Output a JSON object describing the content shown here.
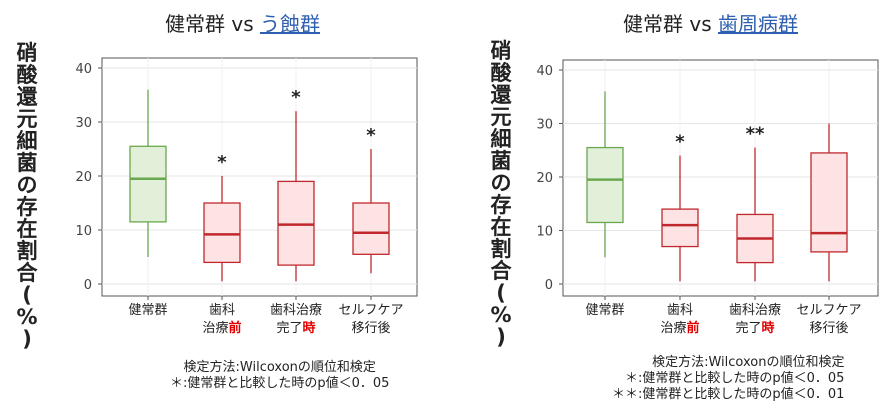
{
  "chart_data": [
    {
      "type": "box",
      "title_prefix": "健常群 vs ",
      "title_highlight": "う蝕群",
      "ylabel": "硝酸還元細菌の存在割合(%)",
      "ylim": [
        0,
        40
      ],
      "yticks": [
        0,
        10,
        20,
        30,
        40
      ],
      "colors": {
        "control": "#6aa84f",
        "control_fill": "#e2efd9",
        "case": "#c0282e",
        "case_fill": "#fde3e3"
      },
      "series": [
        {
          "name": "健常群",
          "label_lines": [
            [
              "健常群",
              ""
            ]
          ],
          "min": 5,
          "q1": 11.5,
          "median": 19.5,
          "q3": 25.5,
          "max": 36,
          "sig": "",
          "group": "control"
        },
        {
          "name": "歯科治療前",
          "label_lines": [
            [
              "歯科",
              ""
            ],
            [
              "治療",
              "前"
            ]
          ],
          "min": 0.5,
          "q1": 4,
          "median": 9.2,
          "q3": 15,
          "max": 20,
          "sig": "*",
          "group": "case"
        },
        {
          "name": "歯科治療完了時",
          "label_lines": [
            [
              "歯科治療",
              ""
            ],
            [
              "完了",
              "時"
            ]
          ],
          "min": 0.5,
          "q1": 3.5,
          "median": 11,
          "q3": 19,
          "max": 32,
          "sig": "*",
          "group": "case"
        },
        {
          "name": "セルフケア移行後",
          "label_lines": [
            [
              "セルフケア",
              ""
            ],
            [
              "移行後",
              ""
            ]
          ],
          "min": 2,
          "q1": 5.5,
          "median": 9.5,
          "q3": 15,
          "max": 25,
          "sig": "*",
          "group": "case"
        }
      ],
      "notes": [
        "検定方法:Wilcoxonの順位和検定",
        "＊:健常群と比較した時のp値＜0．05"
      ]
    },
    {
      "type": "box",
      "title_prefix": "健常群 vs ",
      "title_highlight": "歯周病群",
      "ylabel": "硝酸還元細菌の存在割合(%)",
      "ylim": [
        0,
        40
      ],
      "yticks": [
        0,
        10,
        20,
        30,
        40
      ],
      "colors": {
        "control": "#6aa84f",
        "control_fill": "#e2efd9",
        "case": "#c0282e",
        "case_fill": "#fde3e3"
      },
      "series": [
        {
          "name": "健常群",
          "label_lines": [
            [
              "健常群",
              ""
            ]
          ],
          "min": 5,
          "q1": 11.5,
          "median": 19.5,
          "q3": 25.5,
          "max": 36,
          "sig": "",
          "group": "control"
        },
        {
          "name": "歯科治療前",
          "label_lines": [
            [
              "歯科",
              ""
            ],
            [
              "治療",
              "前"
            ]
          ],
          "min": 0.5,
          "q1": 7,
          "median": 11,
          "q3": 14,
          "max": 24,
          "sig": "*",
          "group": "case"
        },
        {
          "name": "歯科治療完了時",
          "label_lines": [
            [
              "歯科治療",
              ""
            ],
            [
              "完了",
              "時"
            ]
          ],
          "min": 0.5,
          "q1": 4,
          "median": 8.5,
          "q3": 13,
          "max": 25.5,
          "sig": "**",
          "group": "case"
        },
        {
          "name": "セルフケア移行後",
          "label_lines": [
            [
              "セルフケア",
              ""
            ],
            [
              "移行後",
              ""
            ]
          ],
          "min": 0.5,
          "q1": 6,
          "median": 9.5,
          "q3": 24.5,
          "max": 30,
          "sig": "",
          "group": "case"
        }
      ],
      "notes": [
        "検定方法:Wilcoxonの順位和検定",
        "＊:健常群と比較した時のp値＜0．05",
        "＊＊:健常群と比較した時のp値＜0．01"
      ]
    }
  ]
}
